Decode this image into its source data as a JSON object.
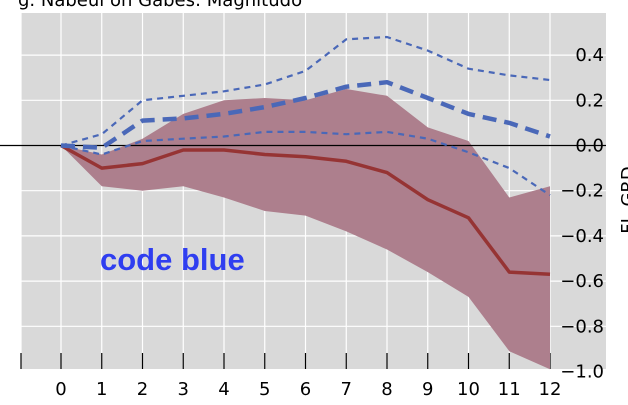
{
  "chart_data": {
    "type": "line",
    "top_caption": "g. Nabeul  on Gabés: Magnitudo",
    "ylabel": "FL-GRD",
    "annotation": "code blue",
    "xlim": [
      0,
      12
    ],
    "ylim": [
      -1.0,
      0.4
    ],
    "x": [
      0,
      1,
      2,
      3,
      4,
      5,
      6,
      7,
      8,
      9,
      10,
      11,
      12
    ],
    "x_ticks": [
      "0",
      "1",
      "2",
      "3",
      "4",
      "5",
      "6",
      "7",
      "8",
      "9",
      "10",
      "11",
      "12"
    ],
    "y_ticks": [
      {
        "value": 0.4,
        "label": "0.4"
      },
      {
        "value": 0.2,
        "label": "0.2"
      },
      {
        "value": 0.0,
        "label": "0.0"
      },
      {
        "value": -0.2,
        "label": "−0.2"
      },
      {
        "value": -0.4,
        "label": "−0.4"
      },
      {
        "value": -0.6,
        "label": "−0.6"
      },
      {
        "value": -0.8,
        "label": "−0.8"
      },
      {
        "value": -1.0,
        "label": "−1.0"
      }
    ],
    "band": {
      "upper": [
        0.0,
        -0.04,
        0.03,
        0.14,
        0.2,
        0.21,
        0.2,
        0.25,
        0.22,
        0.08,
        0.02,
        -0.23,
        -0.18
      ],
      "lower": [
        0.0,
        -0.18,
        -0.2,
        -0.18,
        -0.23,
        -0.29,
        -0.31,
        -0.38,
        -0.46,
        -0.56,
        -0.67,
        -0.91,
        -0.99
      ],
      "color": "#ad7f8d"
    },
    "series": [
      {
        "style": "solid",
        "color": "#963434",
        "values": [
          0.0,
          -0.1,
          -0.08,
          -0.02,
          -0.02,
          -0.04,
          -0.05,
          -0.07,
          -0.12,
          -0.24,
          -0.32,
          -0.56,
          -0.57
        ]
      },
      {
        "style": "thick-dashed",
        "color": "#4a68b8",
        "values": [
          0.0,
          -0.01,
          0.11,
          0.12,
          0.14,
          0.17,
          0.21,
          0.26,
          0.28,
          0.21,
          0.14,
          0.1,
          0.04
        ]
      },
      {
        "style": "dashed",
        "color": "#4a68b8",
        "values": [
          0.0,
          0.05,
          0.2,
          0.22,
          0.24,
          0.27,
          0.33,
          0.47,
          0.48,
          0.42,
          0.34,
          0.31,
          0.29
        ]
      },
      {
        "style": "dashed",
        "color": "#4a68b8",
        "values": [
          0.0,
          -0.04,
          0.02,
          0.03,
          0.04,
          0.06,
          0.06,
          0.05,
          0.06,
          0.03,
          -0.03,
          -0.1,
          -0.22
        ]
      }
    ],
    "grid": true,
    "background": "#d9d9d9"
  }
}
